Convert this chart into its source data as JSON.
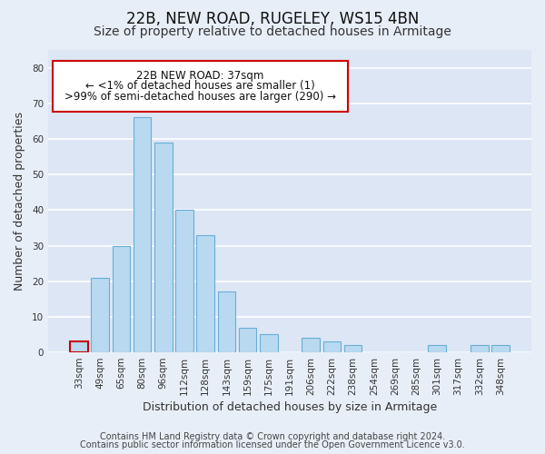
{
  "title": "22B, NEW ROAD, RUGELEY, WS15 4BN",
  "subtitle": "Size of property relative to detached houses in Armitage",
  "xlabel": "Distribution of detached houses by size in Armitage",
  "ylabel": "Number of detached properties",
  "categories": [
    "33sqm",
    "49sqm",
    "65sqm",
    "80sqm",
    "96sqm",
    "112sqm",
    "128sqm",
    "143sqm",
    "159sqm",
    "175sqm",
    "191sqm",
    "206sqm",
    "222sqm",
    "238sqm",
    "254sqm",
    "269sqm",
    "285sqm",
    "301sqm",
    "317sqm",
    "332sqm",
    "348sqm"
  ],
  "values": [
    3,
    21,
    30,
    66,
    59,
    40,
    33,
    17,
    7,
    5,
    0,
    4,
    3,
    2,
    0,
    0,
    0,
    2,
    0,
    2,
    2
  ],
  "bar_color": "#b8d9f0",
  "bar_edge_color": "#6aaed6",
  "highlight_bar_index": 0,
  "highlight_bar_edge_color": "#cc0000",
  "ylim": [
    0,
    85
  ],
  "yticks": [
    0,
    10,
    20,
    30,
    40,
    50,
    60,
    70,
    80
  ],
  "annotation_box_text_line1": "22B NEW ROAD: 37sqm",
  "annotation_box_text_line2": "← <1% of detached houses are smaller (1)",
  "annotation_box_text_line3": ">99% of semi-detached houses are larger (290) →",
  "footer_line1": "Contains HM Land Registry data © Crown copyright and database right 2024.",
  "footer_line2": "Contains public sector information licensed under the Open Government Licence v3.0.",
  "background_color": "#e8eef8",
  "plot_bg_color": "#dce6f5",
  "grid_color": "#ffffff",
  "title_fontsize": 12,
  "subtitle_fontsize": 10,
  "axis_label_fontsize": 9,
  "tick_fontsize": 7.5,
  "annotation_fontsize": 8.5,
  "footer_fontsize": 7
}
